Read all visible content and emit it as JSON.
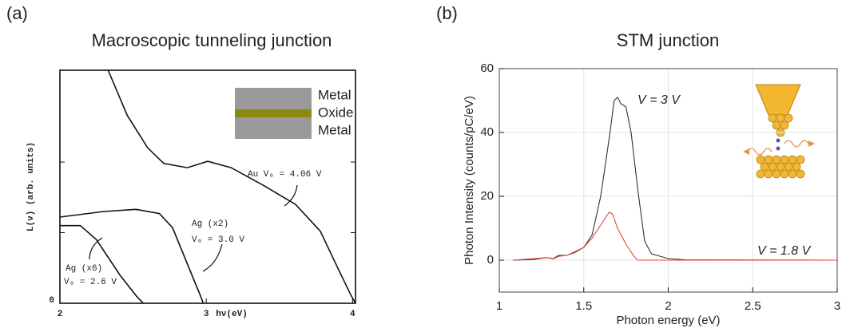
{
  "chart_data": [
    {
      "type": "line",
      "panel_label": "(a)",
      "title": "Macroscopic tunneling junction",
      "x_label": "hν(eV)",
      "y_label": "L(ν)  (arb. units)",
      "xlim": [
        2,
        4.02
      ],
      "xticks": [
        2,
        3,
        4
      ],
      "ylim": [
        0,
        3.3
      ],
      "yticks": [
        0
      ],
      "ytick_marks": [
        1,
        2
      ],
      "inset_labels": [
        "Metal",
        "Oxide",
        "Metal"
      ],
      "annotations": [
        "Au  V₀ = 4.06 V",
        "Ag (x2)",
        "V₀ = 3.0 V",
        "Ag (x6)",
        "V₀ = 2.6 V"
      ],
      "series": [
        {
          "color": "#111",
          "x": [
            2.33,
            2.46,
            2.6,
            2.71,
            2.87,
            3.01,
            3.17,
            3.39,
            3.61,
            3.78,
            3.91,
            3.99,
            4.02
          ],
          "values": [
            3.3,
            2.66,
            2.2,
            1.98,
            1.92,
            2.01,
            1.92,
            1.67,
            1.4,
            1.02,
            0.45,
            0.11,
            0
          ]
        },
        {
          "color": "#111",
          "x": [
            2,
            2.3,
            2.52,
            2.68,
            2.77,
            2.87,
            2.96,
            2.98
          ],
          "values": [
            1.22,
            1.3,
            1.33,
            1.27,
            1.07,
            0.56,
            0.11,
            0
          ]
        },
        {
          "color": "#111",
          "x": [
            2,
            2.14,
            2.25,
            2.41,
            2.52,
            2.57
          ],
          "values": [
            1.1,
            1.1,
            0.9,
            0.4,
            0.11,
            0
          ]
        }
      ]
    },
    {
      "type": "line",
      "panel_label": "(b)",
      "title": "STM junction",
      "x_label": "Photon energy (eV)",
      "y_label": "Photon Intensity (counts/pC/eV)",
      "xlim": [
        1,
        3
      ],
      "xticks": [
        1,
        1.5,
        2,
        2.5,
        3
      ],
      "ylim": [
        -10,
        60
      ],
      "yticks": [
        0,
        20,
        40,
        60
      ],
      "grid": true,
      "series": [
        {
          "name": "V = 3 V",
          "color": "#333333",
          "x": [
            1.08,
            1.2,
            1.28,
            1.32,
            1.35,
            1.4,
            1.45,
            1.5,
            1.55,
            1.6,
            1.65,
            1.68,
            1.7,
            1.72,
            1.75,
            1.78,
            1.82,
            1.86,
            1.9,
            2.0,
            2.1,
            3
          ],
          "values": [
            0,
            0.2,
            0.8,
            0.5,
            1.5,
            1.5,
            2.5,
            4,
            8,
            20,
            38,
            50,
            51,
            49,
            48,
            40,
            22,
            6,
            2,
            0.5,
            0.1,
            0
          ]
        },
        {
          "name": "V = 1.8 V",
          "color": "#e8423c",
          "x": [
            1.08,
            1.28,
            1.32,
            1.35,
            1.4,
            1.5,
            1.55,
            1.6,
            1.65,
            1.67,
            1.7,
            1.75,
            1.8,
            1.82,
            3
          ],
          "values": [
            0,
            0.8,
            0.4,
            1.2,
            1.5,
            4,
            7,
            11,
            15,
            14.5,
            10,
            5,
            1,
            0,
            0
          ]
        }
      ]
    }
  ]
}
